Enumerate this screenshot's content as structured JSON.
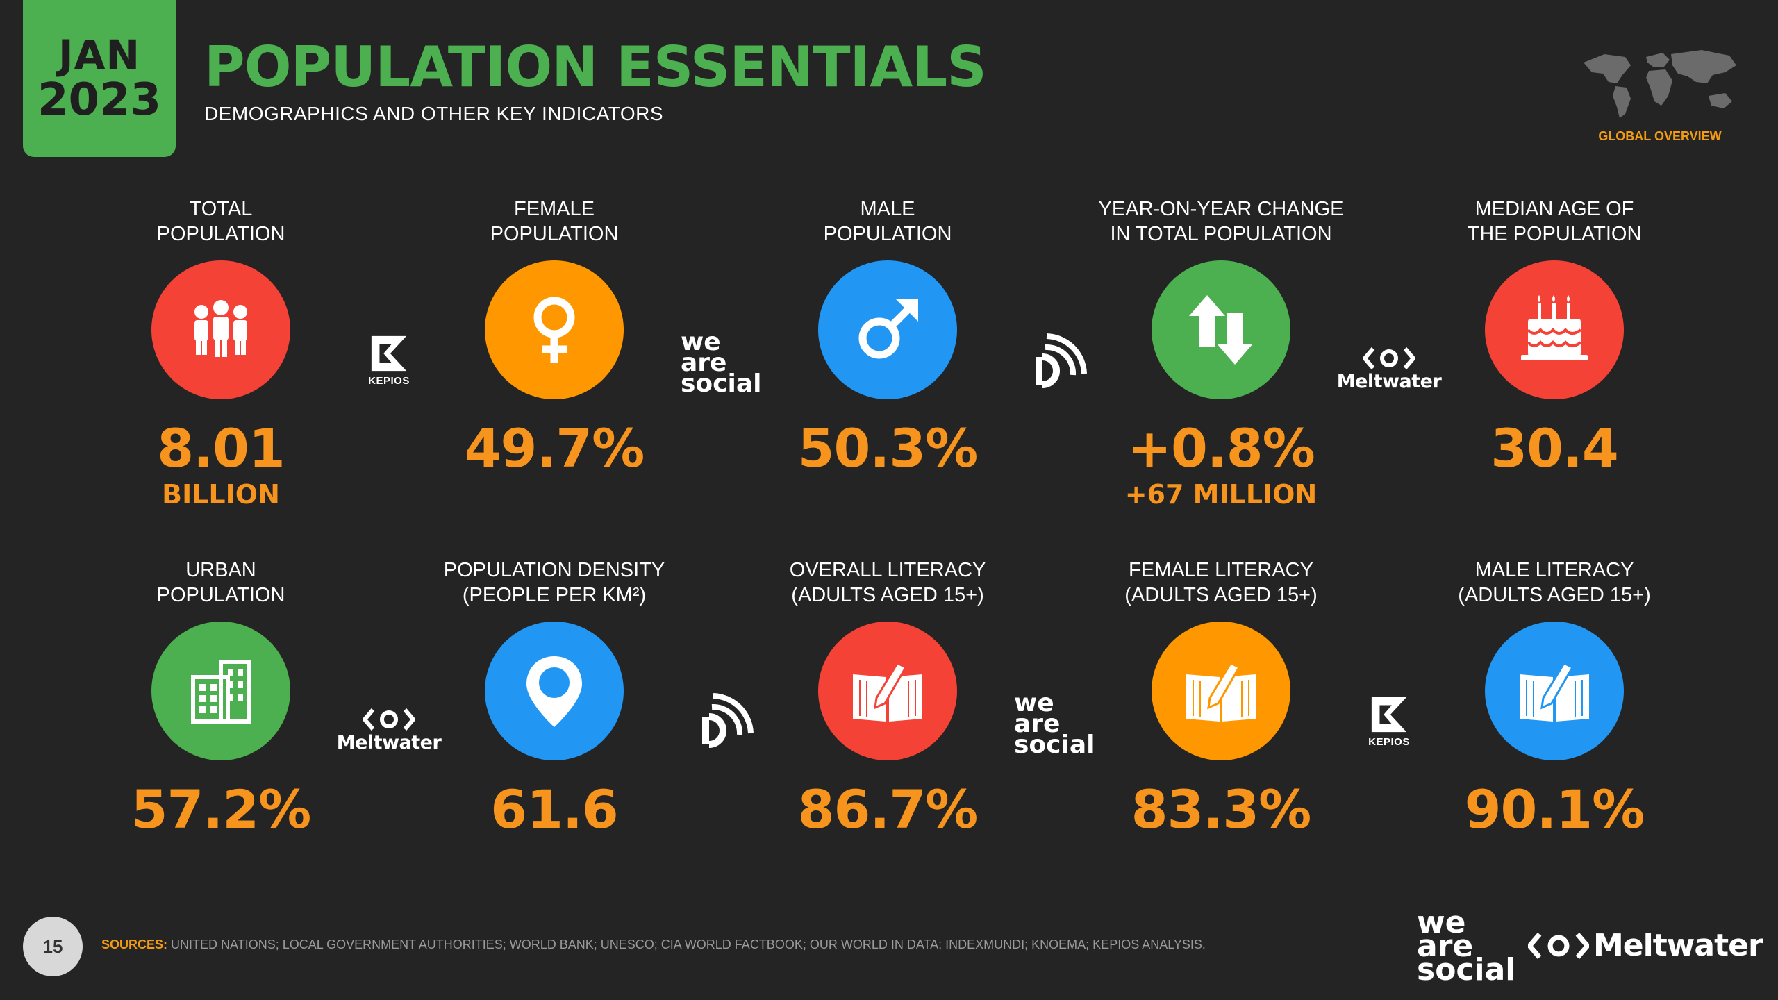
{
  "header": {
    "date_month": "JAN",
    "date_year": "2023",
    "title": "POPULATION ESSENTIALS",
    "subtitle": "DEMOGRAPHICS AND OTHER KEY INDICATORS",
    "global_label": "GLOBAL OVERVIEW"
  },
  "colors": {
    "accent_green": "#4caf50",
    "value_orange": "#f7941d",
    "red": "#f44336",
    "orange": "#ff9800",
    "blue": "#2196f3",
    "green": "#4caf50",
    "background": "#242424"
  },
  "row1": [
    {
      "label_line1": "TOTAL",
      "label_line2": "POPULATION",
      "value": "8.01",
      "subvalue": "BILLION",
      "icon": "people-icon",
      "color": "#f44336"
    },
    {
      "label_line1": "FEMALE",
      "label_line2": "POPULATION",
      "value": "49.7%",
      "subvalue": "",
      "icon": "female-symbol-icon",
      "color": "#ff9800"
    },
    {
      "label_line1": "MALE",
      "label_line2": "POPULATION",
      "value": "50.3%",
      "subvalue": "",
      "icon": "male-symbol-icon",
      "color": "#2196f3"
    },
    {
      "label_line1": "YEAR-ON-YEAR CHANGE",
      "label_line2": "IN TOTAL POPULATION",
      "value": "+0.8%",
      "subvalue": "+67 MILLION",
      "icon": "up-down-arrows-icon",
      "color": "#4caf50"
    },
    {
      "label_line1": "MEDIAN AGE OF",
      "label_line2": "THE POPULATION",
      "value": "30.4",
      "subvalue": "",
      "icon": "birthday-cake-icon",
      "color": "#f44336"
    }
  ],
  "row2": [
    {
      "label_line1": "URBAN",
      "label_line2": "POPULATION",
      "value": "57.2%",
      "icon": "building-icon",
      "color": "#4caf50"
    },
    {
      "label_line1": "POPULATION DENSITY",
      "label_line2": "(PEOPLE PER KM²)",
      "value": "61.6",
      "icon": "map-pin-icon",
      "color": "#2196f3"
    },
    {
      "label_line1": "OVERALL LITERACY",
      "label_line2": "(ADULTS AGED 15+)",
      "value": "86.7%",
      "icon": "book-pencil-icon",
      "color": "#f44336"
    },
    {
      "label_line1": "FEMALE LITERACY",
      "label_line2": "(ADULTS AGED 15+)",
      "value": "83.3%",
      "icon": "book-pencil-icon",
      "color": "#ff9800"
    },
    {
      "label_line1": "MALE LITERACY",
      "label_line2": "(ADULTS AGED 15+)",
      "value": "90.1%",
      "icon": "book-pencil-icon",
      "color": "#2196f3"
    }
  ],
  "logos": {
    "kepios": "KEPIOS",
    "was_line1": "we",
    "was_line2": "are",
    "was_line3": "social",
    "meltwater": "Meltwater"
  },
  "footer": {
    "page_number": "15",
    "sources_label": "SOURCES:",
    "sources_text": "UNITED NATIONS; LOCAL GOVERNMENT AUTHORITIES; WORLD BANK; UNESCO; CIA WORLD FACTBOOK; OUR WORLD IN DATA; INDEXMUNDI; KNOEMA; KEPIOS ANALYSIS."
  }
}
